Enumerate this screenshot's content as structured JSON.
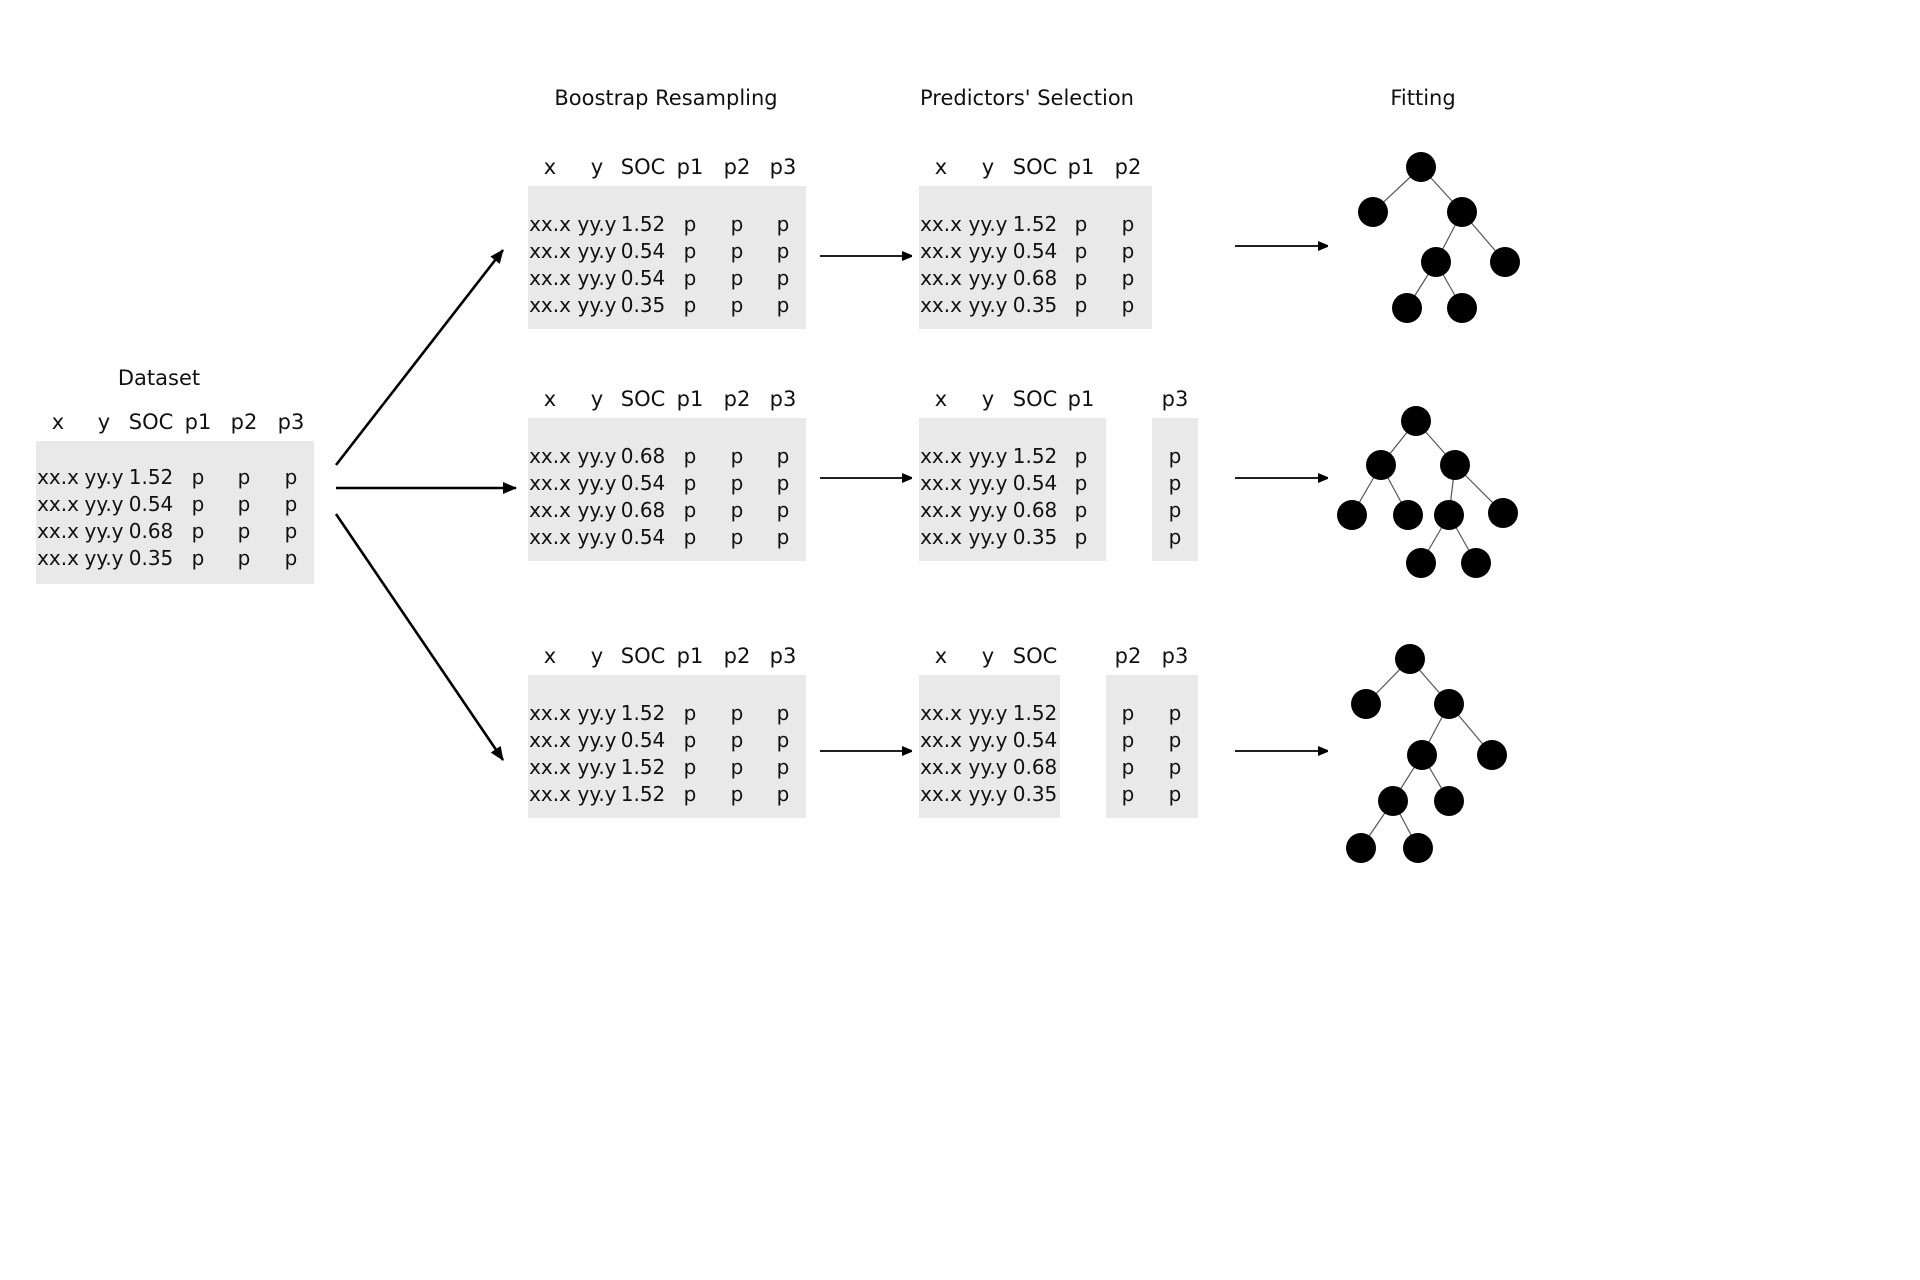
{
  "titles": {
    "dataset": "Dataset",
    "resampling": "Boostrap Resampling",
    "selection": "Predictors' Selection",
    "fitting": "Fitting"
  },
  "dataset": {
    "columns": [
      "x",
      "y",
      "SOC",
      "p1",
      "p2",
      "p3"
    ],
    "rows": [
      [
        "xx.x",
        "yy.y",
        "1.52",
        "p",
        "p",
        "p"
      ],
      [
        "xx.x",
        "yy.y",
        "0.54",
        "p",
        "p",
        "p"
      ],
      [
        "xx.x",
        "yy.y",
        "0.68",
        "p",
        "p",
        "p"
      ],
      [
        "xx.x",
        "yy.y",
        "0.35",
        "p",
        "p",
        "p"
      ]
    ]
  },
  "resamples": [
    {
      "columns": [
        "x",
        "y",
        "SOC",
        "p1",
        "p2",
        "p3"
      ],
      "rows": [
        [
          "xx.x",
          "yy.y",
          "1.52",
          "p",
          "p",
          "p"
        ],
        [
          "xx.x",
          "yy.y",
          "0.54",
          "p",
          "p",
          "p"
        ],
        [
          "xx.x",
          "yy.y",
          "0.54",
          "p",
          "p",
          "p"
        ],
        [
          "xx.x",
          "yy.y",
          "0.35",
          "p",
          "p",
          "p"
        ]
      ]
    },
    {
      "columns": [
        "x",
        "y",
        "SOC",
        "p1",
        "p2",
        "p3"
      ],
      "rows": [
        [
          "xx.x",
          "yy.y",
          "0.68",
          "p",
          "p",
          "p"
        ],
        [
          "xx.x",
          "yy.y",
          "0.54",
          "p",
          "p",
          "p"
        ],
        [
          "xx.x",
          "yy.y",
          "0.68",
          "p",
          "p",
          "p"
        ],
        [
          "xx.x",
          "yy.y",
          "0.54",
          "p",
          "p",
          "p"
        ]
      ]
    },
    {
      "columns": [
        "x",
        "y",
        "SOC",
        "p1",
        "p2",
        "p3"
      ],
      "rows": [
        [
          "xx.x",
          "yy.y",
          "1.52",
          "p",
          "p",
          "p"
        ],
        [
          "xx.x",
          "yy.y",
          "0.54",
          "p",
          "p",
          "p"
        ],
        [
          "xx.x",
          "yy.y",
          "1.52",
          "p",
          "p",
          "p"
        ],
        [
          "xx.x",
          "yy.y",
          "1.52",
          "p",
          "p",
          "p"
        ]
      ]
    }
  ],
  "selections": [
    {
      "columns": [
        "x",
        "y",
        "SOC",
        "p1",
        "p2"
      ],
      "rows": [
        [
          "xx.x",
          "yy.y",
          "1.52",
          "p",
          "p"
        ],
        [
          "xx.x",
          "yy.y",
          "0.54",
          "p",
          "p"
        ],
        [
          "xx.x",
          "yy.y",
          "0.68",
          "p",
          "p"
        ],
        [
          "xx.x",
          "yy.y",
          "0.35",
          "p",
          "p"
        ]
      ]
    },
    {
      "columns": [
        "x",
        "y",
        "SOC",
        "p1",
        "p3"
      ],
      "rows": [
        [
          "xx.x",
          "yy.y",
          "1.52",
          "p",
          "p"
        ],
        [
          "xx.x",
          "yy.y",
          "0.54",
          "p",
          "p"
        ],
        [
          "xx.x",
          "yy.y",
          "0.68",
          "p",
          "p"
        ],
        [
          "xx.x",
          "yy.y",
          "0.35",
          "p",
          "p"
        ]
      ]
    },
    {
      "columns": [
        "x",
        "y",
        "SOC",
        "p2",
        "p3"
      ],
      "rows": [
        [
          "xx.x",
          "yy.y",
          "1.52",
          "p",
          "p"
        ],
        [
          "xx.x",
          "yy.y",
          "0.54",
          "p",
          "p"
        ],
        [
          "xx.x",
          "yy.y",
          "0.68",
          "p",
          "p"
        ],
        [
          "xx.x",
          "yy.y",
          "0.35",
          "p",
          "p"
        ]
      ]
    }
  ],
  "colors": {
    "table_bg": "#e9e9e9",
    "node": "#000000",
    "edge": "#555555",
    "arrow": "#000000"
  }
}
